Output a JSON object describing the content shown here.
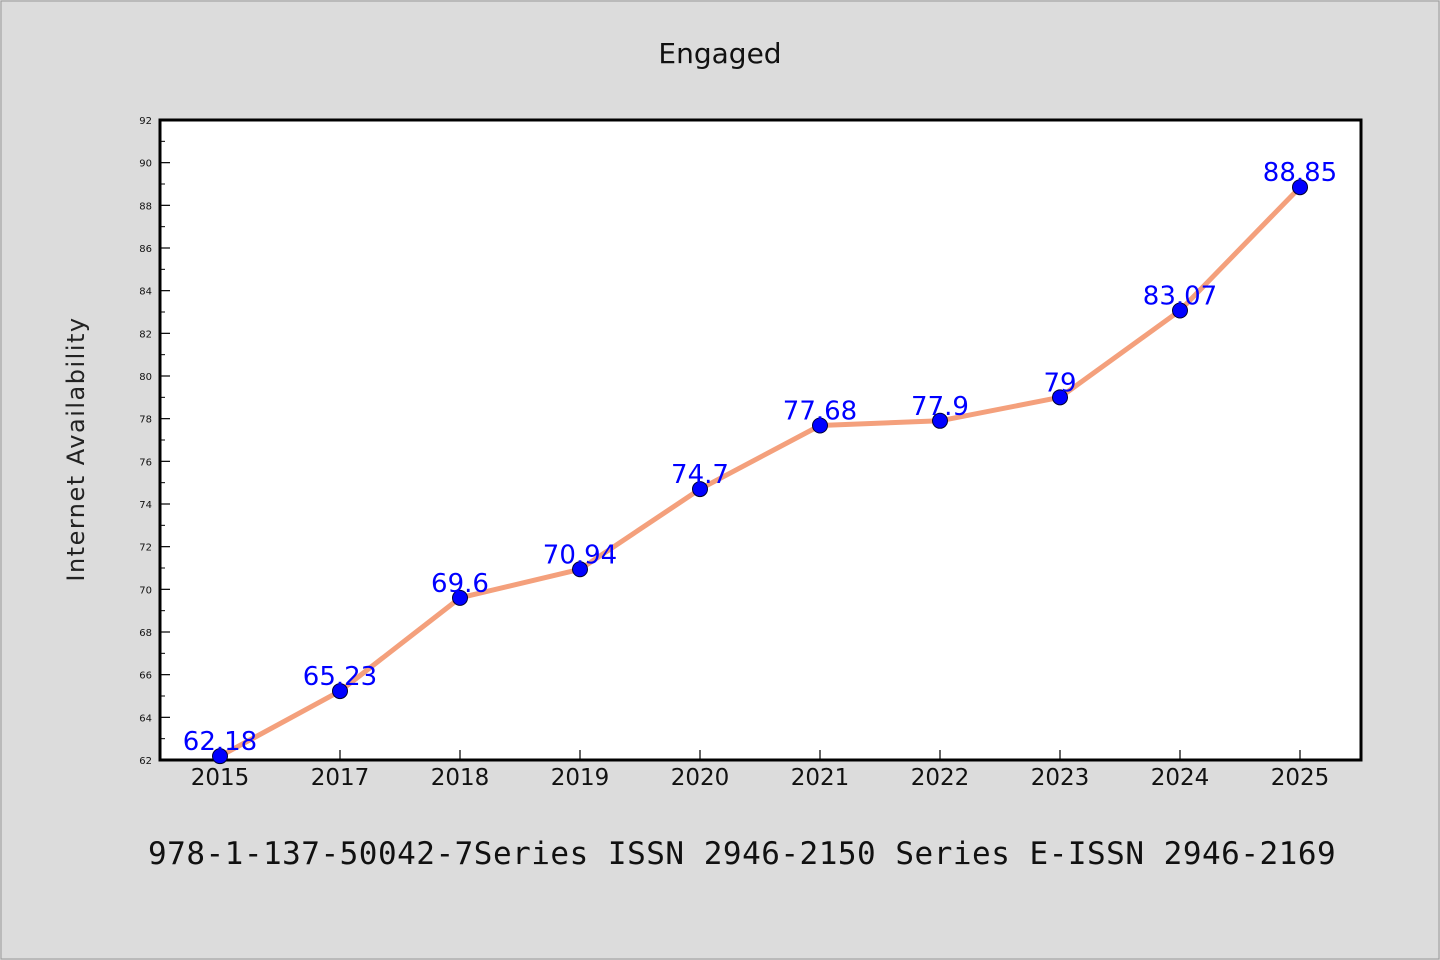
{
  "chart_data": {
    "type": "line",
    "title": "Engaged",
    "xlabel": "",
    "ylabel": "Internet Availability",
    "categories": [
      "2015",
      "2017",
      "2018",
      "2019",
      "2020",
      "2021",
      "2022",
      "2023",
      "2024",
      "2025"
    ],
    "series": [
      {
        "name": "",
        "values": [
          62.18,
          65.23,
          69.6,
          70.94,
          74.7,
          77.68,
          77.9,
          79,
          83.07,
          88.85
        ],
        "data_labels": [
          "62.18",
          "65.23",
          "69.6",
          "70.94",
          "74.7",
          "77.68",
          "77.9",
          "79",
          "83.07",
          "88.85"
        ],
        "line_color": "#f4a07c",
        "marker_color": "#0000ff"
      }
    ],
    "ylim": [
      62,
      92
    ],
    "yticks": [
      "62",
      "64",
      "66",
      "68",
      "70",
      "72",
      "74",
      "76",
      "78",
      "80",
      "82",
      "84",
      "86",
      "88",
      "90",
      "92"
    ],
    "grid": false,
    "legend": "none",
    "label_color": "#0000ff",
    "background": "#dcdcdc",
    "plot_background": "#ffffff"
  },
  "footer": {
    "text": "978-1-137-50042-7Series ISSN 2946-2150 Series E-ISSN 2946-2169"
  }
}
